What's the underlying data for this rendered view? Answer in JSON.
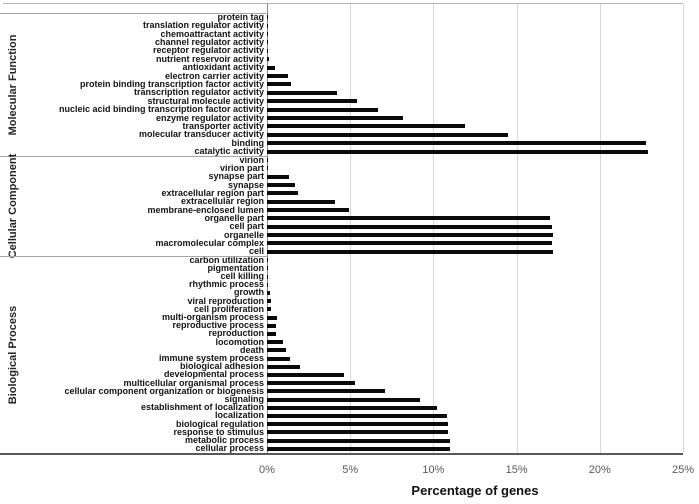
{
  "chart_data": {
    "type": "bar",
    "orientation": "horizontal",
    "title": "",
    "xlabel": "Percentage of genes",
    "ylabel": "",
    "xlim": [
      0,
      25
    ],
    "x_ticks": [
      "0%",
      "5%",
      "10%",
      "15%",
      "20%",
      "25%"
    ],
    "grid": "vertical",
    "colors": {
      "bar": "#0a0a0a",
      "gridline": "#d6d6d6",
      "axis_line": "#8c8c8c",
      "tick_text": "#595959",
      "label_text": "#141414"
    },
    "sections": [
      {
        "name": "Molecular Function",
        "items": [
          {
            "label": "protein tag",
            "value": 0.05
          },
          {
            "label": "translation regulator activity",
            "value": 0.05
          },
          {
            "label": "chemoattractant activity",
            "value": 0.05
          },
          {
            "label": "channel regulator activity",
            "value": 0.05
          },
          {
            "label": "receptor regulator activity",
            "value": 0.05
          },
          {
            "label": "nutrient reservoir activity",
            "value": 0.15
          },
          {
            "label": "antioxidant activity",
            "value": 0.5
          },
          {
            "label": "electron carrier activity",
            "value": 1.25
          },
          {
            "label": "protein binding transcription factor activity",
            "value": 1.45
          },
          {
            "label": "transcription regulator activity",
            "value": 4.2
          },
          {
            "label": "structural molecule activity",
            "value": 5.4
          },
          {
            "label": "nucleic acid binding transcription factor activity",
            "value": 6.7
          },
          {
            "label": "enzyme regulator activity",
            "value": 8.2
          },
          {
            "label": "transporter activity",
            "value": 11.9
          },
          {
            "label": "molecular transducer activity",
            "value": 14.5
          },
          {
            "label": "binding",
            "value": 22.8
          },
          {
            "label": "catalytic activity",
            "value": 22.9
          }
        ]
      },
      {
        "name": "Cellular Component",
        "items": [
          {
            "label": "virion",
            "value": 0.05
          },
          {
            "label": "virion part",
            "value": 0.05
          },
          {
            "label": "synapse part",
            "value": 1.3
          },
          {
            "label": "synapse",
            "value": 1.7
          },
          {
            "label": "extracellular region part",
            "value": 1.85
          },
          {
            "label": "extracellular region",
            "value": 4.1
          },
          {
            "label": "membrane-enclosed lumen",
            "value": 4.9
          },
          {
            "label": "organelle part",
            "value": 17.0
          },
          {
            "label": "cell part",
            "value": 17.1
          },
          {
            "label": "organelle",
            "value": 17.2
          },
          {
            "label": "macromolecular complex",
            "value": 17.1
          },
          {
            "label": "cell",
            "value": 17.2
          }
        ]
      },
      {
        "name": "Biological Process",
        "items": [
          {
            "label": "carbon utilization",
            "value": 0.03
          },
          {
            "label": "pigmentation",
            "value": 0.03
          },
          {
            "label": "cell killing",
            "value": 0.03
          },
          {
            "label": "rhythmic process",
            "value": 0.06
          },
          {
            "label": "growth",
            "value": 0.2
          },
          {
            "label": "viral reproduction",
            "value": 0.25
          },
          {
            "label": "cell proliferation",
            "value": 0.25
          },
          {
            "label": "multi-organism process",
            "value": 0.6
          },
          {
            "label": "reproductive process",
            "value": 0.55
          },
          {
            "label": "reproduction",
            "value": 0.55
          },
          {
            "label": "locomotion",
            "value": 0.95
          },
          {
            "label": "death",
            "value": 1.15
          },
          {
            "label": "immune system process",
            "value": 1.4
          },
          {
            "label": "biological adhesion",
            "value": 2.0
          },
          {
            "label": "developmental process",
            "value": 4.6
          },
          {
            "label": "multicellular organismal process",
            "value": 5.3
          },
          {
            "label": "cellular component organization or biogenesis",
            "value": 7.1
          },
          {
            "label": "signaling",
            "value": 9.2
          },
          {
            "label": "establishment of localization",
            "value": 10.2
          },
          {
            "label": "localization",
            "value": 10.8
          },
          {
            "label": "biological regulation",
            "value": 10.9
          },
          {
            "label": "response to stimulus",
            "value": 10.9
          },
          {
            "label": "metabolic process",
            "value": 11.0
          },
          {
            "label": "cellular process",
            "value": 11.0
          }
        ]
      }
    ]
  }
}
